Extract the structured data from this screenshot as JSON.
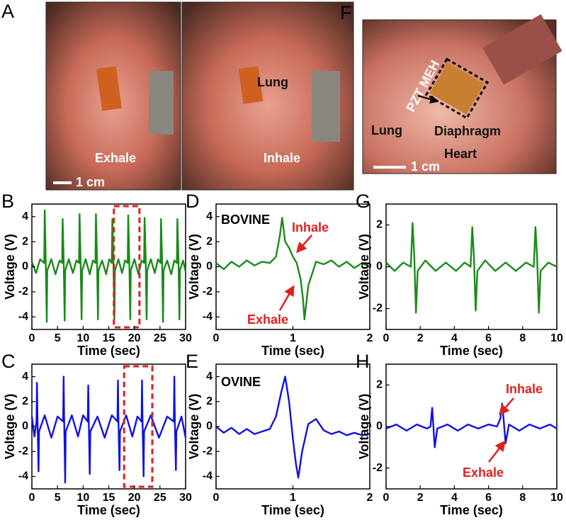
{
  "photo_panels": [
    {
      "label": "A",
      "texts": [
        "Exhale",
        "Inhale",
        "Lung",
        "1 cm"
      ]
    },
    {
      "label": "F",
      "texts": [
        "PZT MEH",
        "Lung",
        "Diaphragm",
        "Heart",
        "1 cm"
      ]
    }
  ],
  "chart_data": [
    {
      "type": "line",
      "panel": "B",
      "xlabel": "Time (sec)",
      "ylabel": "Voltage (V)",
      "color": "#1a8a1a",
      "xlim": [
        0,
        30
      ],
      "xticks": [
        0,
        5,
        10,
        15,
        20,
        25,
        30
      ],
      "ylim": [
        -5,
        5
      ],
      "yticks": [
        4,
        2,
        0,
        -2,
        -4
      ],
      "highlight": [
        16,
        21
      ],
      "x": [
        0,
        0.8,
        1.6,
        2.4,
        2.5,
        2.7,
        2.9,
        3.0,
        3.8,
        4.6,
        5.4,
        5.9,
        6.0,
        6.2,
        6.4,
        6.5,
        7.2,
        8.0,
        8.7,
        9.2,
        9.3,
        9.5,
        9.7,
        9.8,
        10.5,
        11.3,
        11.9,
        12.4,
        12.5,
        12.7,
        12.9,
        13.0,
        13.7,
        14.5,
        15.1,
        15.6,
        15.7,
        15.9,
        16.1,
        16.2,
        16.9,
        17.6,
        18.2,
        18.7,
        18.8,
        19.0,
        19.2,
        19.3,
        20.0,
        20.8,
        21.4,
        21.9,
        22.0,
        22.2,
        22.4,
        22.5,
        23.2,
        24.0,
        24.6,
        25.1,
        25.2,
        25.4,
        25.6,
        25.7,
        26.4,
        27.2,
        27.8,
        28.3,
        28.4,
        28.6,
        28.8,
        28.9,
        29.5,
        30
      ],
      "values": [
        0.4,
        -0.5,
        0.6,
        0.3,
        4.5,
        0.8,
        -4.4,
        -0.3,
        0.6,
        -0.6,
        0.5,
        0.3,
        3.8,
        0.8,
        -4.3,
        -0.3,
        0.6,
        -0.5,
        0.5,
        0.3,
        4.2,
        0.8,
        -4.2,
        -0.3,
        0.6,
        -0.6,
        0.5,
        0.3,
        4.2,
        0.8,
        -4.2,
        -0.3,
        0.5,
        -0.6,
        0.6,
        0.3,
        3.8,
        0.8,
        -4.2,
        -0.3,
        0.6,
        -0.5,
        0.5,
        0.3,
        4.1,
        0.8,
        -4.2,
        -0.3,
        0.6,
        -0.6,
        0.5,
        0.3,
        3.9,
        0.8,
        -4.2,
        -0.3,
        0.6,
        -0.5,
        0.6,
        0.3,
        3.8,
        0.8,
        -4.4,
        -0.3,
        0.5,
        -0.6,
        0.5,
        0.3,
        3.8,
        0.8,
        -4.2,
        -0.3,
        0.5,
        -0.4
      ]
    },
    {
      "type": "line",
      "panel": "C",
      "xlabel": "Time (sec)",
      "ylabel": "Voltage (V)",
      "color": "#1010e8",
      "xlim": [
        0,
        30
      ],
      "xticks": [
        0,
        5,
        10,
        15,
        20,
        25,
        30
      ],
      "ylim": [
        -5,
        5
      ],
      "yticks": [
        4,
        2,
        0,
        -2,
        -4
      ],
      "highlight": [
        18,
        23.5
      ],
      "x": [
        0,
        0.5,
        0.9,
        1.0,
        1.1,
        1.3,
        1.4,
        2.5,
        3.8,
        5.0,
        6.1,
        6.2,
        6.3,
        6.5,
        6.6,
        7.8,
        9.0,
        10.0,
        10.9,
        11.0,
        11.1,
        11.3,
        11.4,
        12.8,
        14.2,
        15.6,
        16.7,
        16.8,
        16.9,
        17.1,
        17.2,
        18.4,
        19.6,
        20.6,
        21.4,
        21.5,
        21.6,
        21.8,
        21.9,
        23.2,
        24.8,
        26.4,
        27.7,
        27.8,
        27.9,
        28.1,
        28.2,
        29.2,
        30
      ],
      "values": [
        0.8,
        -0.8,
        0.4,
        3.5,
        0.5,
        -3.6,
        -0.4,
        0.9,
        -0.9,
        0.8,
        0.4,
        4.0,
        0.5,
        -4.5,
        -0.4,
        0.9,
        -0.8,
        0.9,
        0.4,
        3.3,
        0.5,
        -3.8,
        -0.4,
        0.8,
        -0.9,
        0.9,
        0.4,
        3.7,
        0.5,
        -3.5,
        -0.4,
        0.9,
        -0.8,
        0.8,
        0.4,
        3.7,
        0.5,
        -4.0,
        -0.4,
        0.9,
        -0.9,
        0.8,
        0.4,
        4.0,
        0.5,
        -3.5,
        -0.4,
        0.8,
        -0.9
      ]
    },
    {
      "type": "line",
      "panel": "D",
      "xlabel": "Time (sec)",
      "ylabel": "Voltage (V)",
      "color": "#1a8a1a",
      "xlim": [
        0,
        2
      ],
      "xticks": [
        0,
        1,
        2
      ],
      "ylim": [
        -5,
        5
      ],
      "yticks": [
        4,
        2,
        0,
        -2,
        -4
      ],
      "annotations": [
        {
          "text": "BOVINE",
          "color": "#000000"
        },
        {
          "text": "Inhale",
          "color": "#e02020"
        },
        {
          "text": "Exhale",
          "color": "#e02020"
        }
      ],
      "x": [
        0,
        0.1,
        0.2,
        0.3,
        0.4,
        0.5,
        0.6,
        0.7,
        0.78,
        0.83,
        0.86,
        0.9,
        0.95,
        1.0,
        1.05,
        1.1,
        1.13,
        1.15,
        1.2,
        1.3,
        1.4,
        1.5,
        1.6,
        1.7,
        1.8,
        1.9,
        2.0
      ],
      "values": [
        0.3,
        -0.2,
        0.4,
        0.0,
        0.5,
        0.1,
        0.4,
        0.3,
        0.8,
        2.5,
        3.9,
        2.0,
        1.5,
        0.8,
        0.3,
        -1.0,
        -2.5,
        -4.2,
        -1.5,
        0.4,
        0.2,
        0.5,
        0.0,
        0.4,
        -0.1,
        0.3,
        0.0
      ]
    },
    {
      "type": "line",
      "panel": "E",
      "xlabel": "Time (sec)",
      "ylabel": "Voltage (V)",
      "color": "#1010e8",
      "xlim": [
        0,
        2
      ],
      "xticks": [
        0,
        1,
        2
      ],
      "ylim": [
        -5,
        5
      ],
      "yticks": [
        4,
        2,
        0,
        -2,
        -4
      ],
      "annotations": [
        {
          "text": "OVINE",
          "color": "#000000"
        }
      ],
      "x": [
        0,
        0.1,
        0.2,
        0.3,
        0.4,
        0.5,
        0.6,
        0.7,
        0.78,
        0.85,
        0.9,
        0.95,
        1.0,
        1.04,
        1.07,
        1.12,
        1.2,
        1.3,
        1.4,
        1.5,
        1.6,
        1.7,
        1.8,
        1.9,
        2.0
      ],
      "values": [
        0.0,
        -0.5,
        -0.1,
        -0.6,
        -0.2,
        -0.6,
        -0.4,
        -0.2,
        0.8,
        2.8,
        4.0,
        2.0,
        -1.0,
        -3.0,
        -4.1,
        -2.0,
        0.2,
        0.6,
        -0.3,
        -0.6,
        -0.4,
        -0.7,
        -0.5,
        -0.7,
        -0.6
      ]
    },
    {
      "type": "line",
      "panel": "G",
      "xlabel": "Time (sec)",
      "ylabel": "Voltage (V)",
      "color": "#1a8a1a",
      "xlim": [
        0,
        10
      ],
      "xticks": [
        0,
        2,
        4,
        6,
        8,
        10
      ],
      "ylim": [
        -3,
        3
      ],
      "yticks": [
        2,
        0,
        -2
      ],
      "x": [
        0,
        0.5,
        1.0,
        1.45,
        1.55,
        1.65,
        1.75,
        1.85,
        2.3,
        2.9,
        3.5,
        4.1,
        4.6,
        4.95,
        5.05,
        5.15,
        5.25,
        5.35,
        5.8,
        6.4,
        7.0,
        7.6,
        8.2,
        8.65,
        8.75,
        8.85,
        8.95,
        9.05,
        9.5,
        10
      ],
      "values": [
        0.2,
        -0.2,
        0.2,
        0.0,
        2.1,
        0.5,
        -2.2,
        -0.2,
        0.3,
        -0.2,
        0.2,
        -0.2,
        0.2,
        0.0,
        1.9,
        0.4,
        -2.1,
        -0.2,
        0.3,
        -0.2,
        0.2,
        -0.2,
        0.2,
        0.0,
        1.9,
        0.4,
        -2.2,
        -0.2,
        0.2,
        0.0
      ]
    },
    {
      "type": "line",
      "panel": "H",
      "xlabel": "Time (sec)",
      "ylabel": "Voltage (V)",
      "color": "#1010e8",
      "xlim": [
        0,
        10
      ],
      "xticks": [
        0,
        2,
        4,
        6,
        8,
        10
      ],
      "ylim": [
        -3,
        3
      ],
      "yticks": [
        2,
        0,
        -2
      ],
      "annotations": [
        {
          "text": "Inhale",
          "color": "#e02020"
        },
        {
          "text": "Exhale",
          "color": "#e02020"
        }
      ],
      "x": [
        0,
        0.6,
        1.2,
        1.8,
        2.4,
        2.6,
        2.7,
        2.85,
        3.0,
        3.6,
        4.2,
        4.8,
        5.4,
        6.0,
        6.5,
        6.7,
        6.8,
        6.9,
        7.0,
        7.2,
        7.8,
        8.4,
        9.0,
        9.6,
        10
      ],
      "values": [
        -0.1,
        0.1,
        -0.2,
        0.1,
        -0.1,
        0.0,
        0.9,
        -1.0,
        -0.1,
        0.1,
        -0.2,
        0.1,
        -0.1,
        0.1,
        0.0,
        0.4,
        1.1,
        0.2,
        -0.8,
        0.1,
        -0.2,
        0.1,
        -0.1,
        0.1,
        -0.1
      ]
    }
  ]
}
